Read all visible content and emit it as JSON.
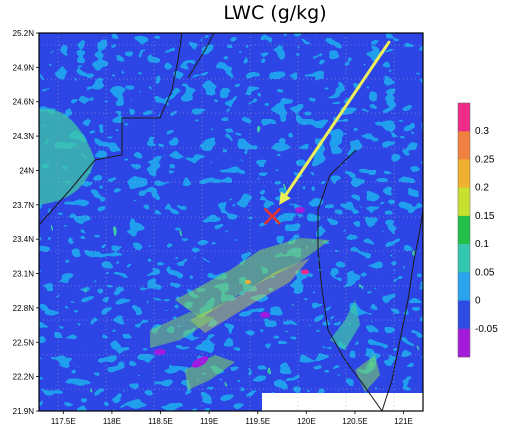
{
  "title": "LWC (g/kg)",
  "map": {
    "lat_labels": [
      "25.2N",
      "24.9N",
      "24.6N",
      "24.3N",
      "24N",
      "23.7N",
      "23.4N",
      "23.1N",
      "22.8N",
      "22.5N",
      "22.2N",
      "21.9N"
    ],
    "lon_labels": [
      "117.5E",
      "118E",
      "118.5E",
      "119E",
      "119.5E",
      "120E",
      "120.5E",
      "121E"
    ],
    "lat_range": [
      21.9,
      25.2
    ],
    "lon_range": [
      117.25,
      121.2
    ],
    "marker": {
      "type": "x",
      "lon": 119.65,
      "lat": 23.6,
      "color": "#e8322e"
    },
    "arrow": {
      "from_lon": 120.85,
      "from_lat": 25.12,
      "to_lon": 119.72,
      "to_lat": 23.7,
      "color": "#ecf15a"
    },
    "field_description_colors": {
      "background": "#1f9fee",
      "negative": "#2f45e6",
      "strong_negative": "#a11ae0",
      "low_positive": "#3ec9a6",
      "mid_positive": "#7fdb5a",
      "high_positive": "#d0e23c"
    }
  },
  "colorbar": {
    "labels": [
      "0.3",
      "0.25",
      "0.2",
      "0.15",
      "0.1",
      "0.05",
      "0",
      "-0.05"
    ],
    "colors": [
      "#ee2a8a",
      "#f08040",
      "#f0b030",
      "#c8e030",
      "#22c24a",
      "#34c7b2",
      "#2aa4ee",
      "#2e4ae4",
      "#a31ad8"
    ]
  }
}
